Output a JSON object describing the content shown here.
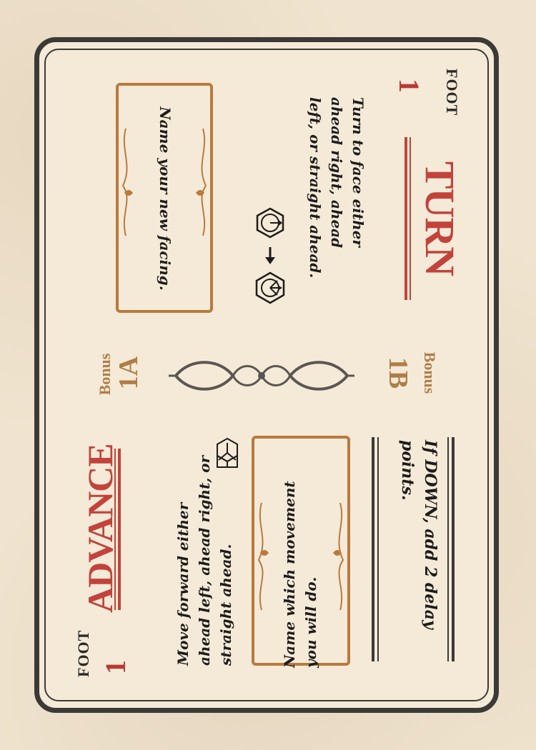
{
  "turn_section": {
    "foot_label": "FOOT",
    "foot_number": "1",
    "title": "TURN",
    "body": "Turn to face either ahead right, ahead left, or straight ahead.",
    "prompt": "Name your new facing.",
    "bonus_label": "Bonus",
    "bonus_code": "1A"
  },
  "advance_section": {
    "foot_label": "FOOT",
    "foot_number": "1",
    "title": "ADVANCE",
    "body": "Move forward either ahead left, ahead right, or straight ahead.",
    "prompt": "Name which movement you will do.",
    "bonus_label": "Bonus",
    "bonus_code": "1B",
    "down_rule": "If DOWN, add 2 delay points."
  },
  "colors": {
    "title_red": "#c2433b",
    "bonus_tan": "#b07d48",
    "frame_copper": "#b97a3d",
    "ink": "#1e1c1a"
  },
  "icons": [
    "hex-facing-icon",
    "arrow-icon",
    "hex-turn-options-icon",
    "hex-advance-icon",
    "scroll-ornament-icon"
  ]
}
